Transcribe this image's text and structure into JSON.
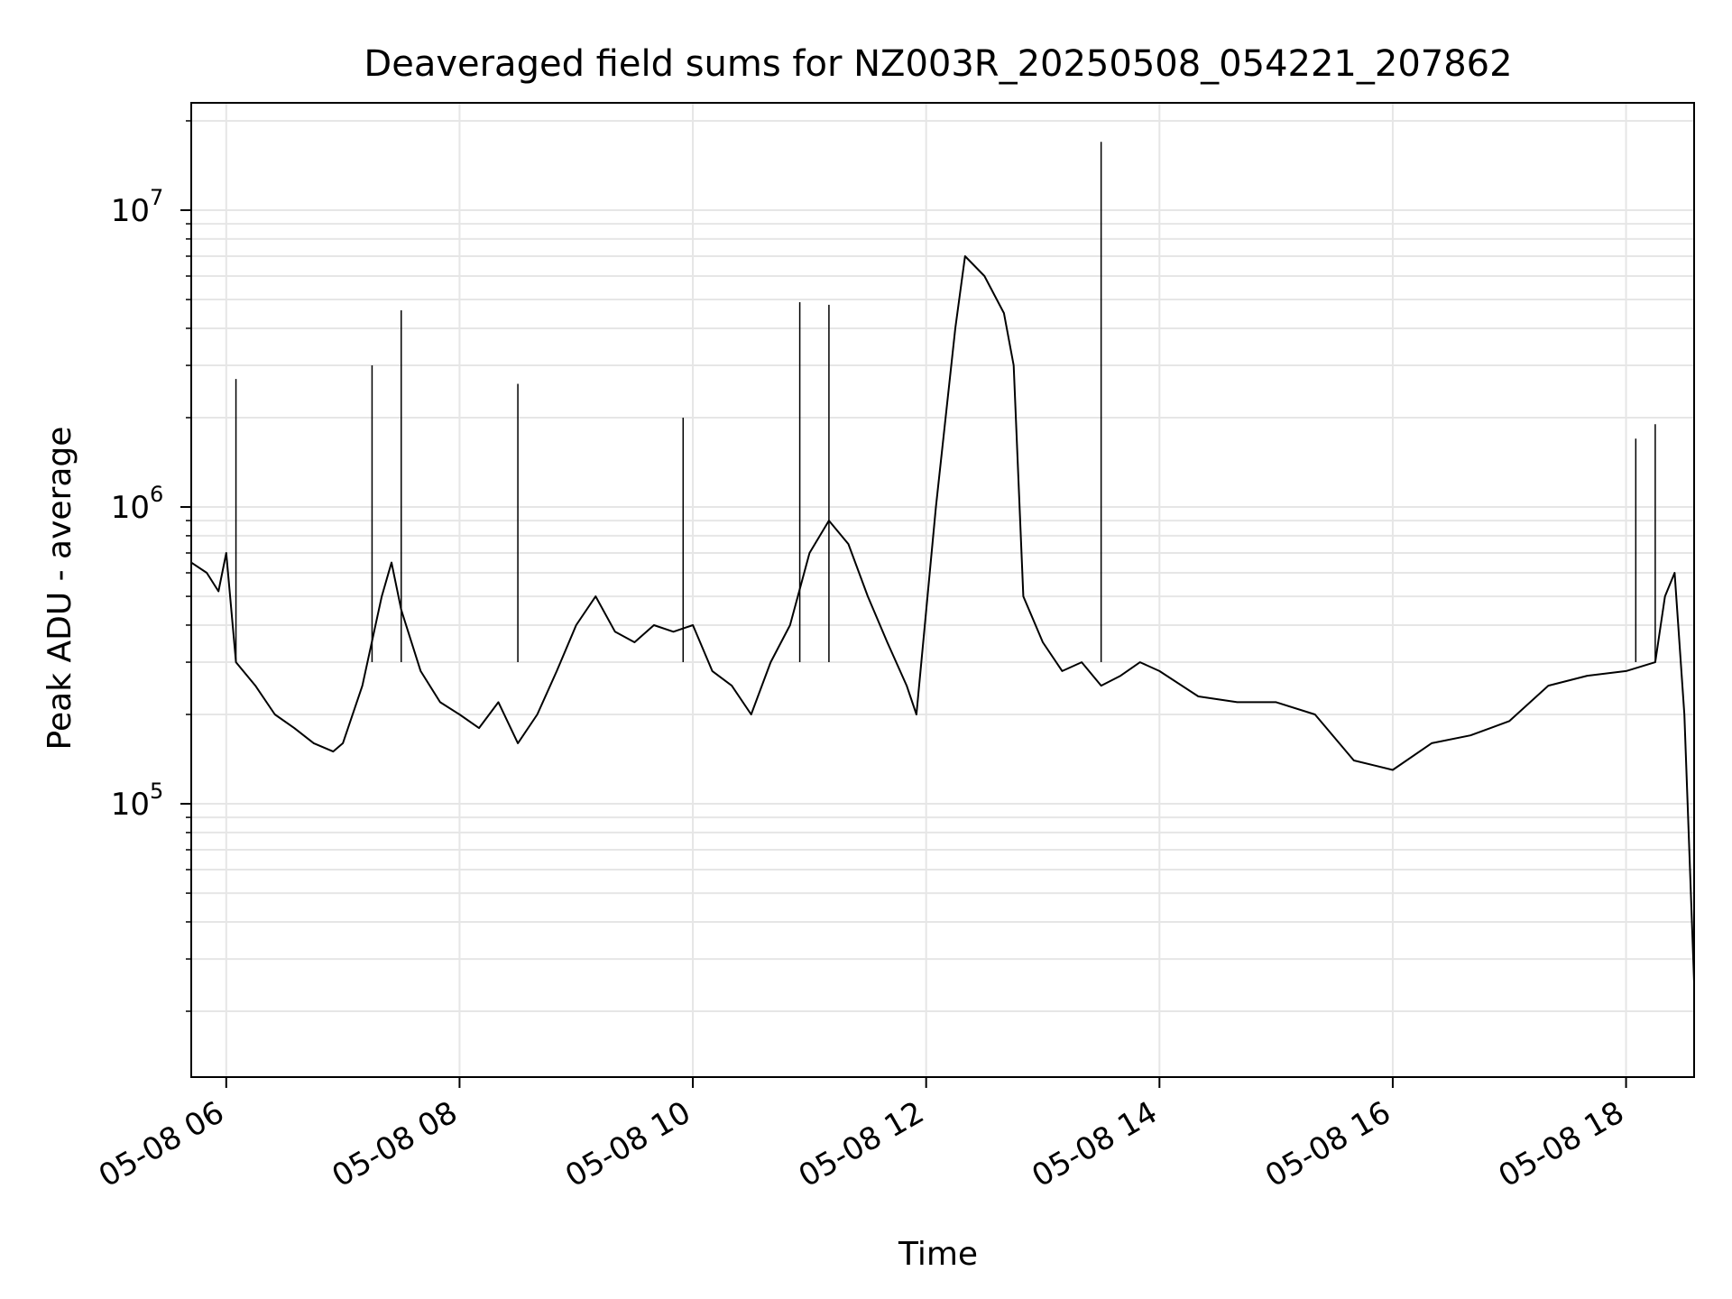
{
  "chart_data": {
    "type": "line",
    "title": "Deaveraged field sums for NZ003R_20250508_054221_207862",
    "xlabel": "Time",
    "ylabel": "Peak ADU - average",
    "yscale": "log",
    "grid": true,
    "line_color": "#000000",
    "grid_color": "#e6e6e6",
    "x_ticks": [
      "05-08 06",
      "05-08 08",
      "05-08 10",
      "05-08 12",
      "05-08 14",
      "05-08 16",
      "05-08 18"
    ],
    "x_tick_values": [
      "2025-05-08 06:00",
      "2025-05-08 08:00",
      "2025-05-08 10:00",
      "2025-05-08 12:00",
      "2025-05-08 14:00",
      "2025-05-08 16:00",
      "2025-05-08 18:00"
    ],
    "xlim": [
      "2025-05-08 05:42",
      "2025-05-08 18:35"
    ],
    "ylim": [
      12000,
      23000000
    ],
    "y_ticks": [
      {
        "base": "10",
        "exp": "5",
        "value": 100000
      },
      {
        "base": "10",
        "exp": "6",
        "value": 1000000
      },
      {
        "base": "10",
        "exp": "7",
        "value": 10000000
      }
    ],
    "series": [
      {
        "x": [
          "2025-05-08 05:42",
          "2025-05-08 05:50",
          "2025-05-08 05:56",
          "2025-05-08 06:00",
          "2025-05-08 06:05",
          "2025-05-08 06:15",
          "2025-05-08 06:25",
          "2025-05-08 06:35",
          "2025-05-08 06:45",
          "2025-05-08 06:55",
          "2025-05-08 07:00",
          "2025-05-08 07:10",
          "2025-05-08 07:20",
          "2025-05-08 07:25",
          "2025-05-08 07:30",
          "2025-05-08 07:40",
          "2025-05-08 07:50",
          "2025-05-08 08:00",
          "2025-05-08 08:10",
          "2025-05-08 08:20",
          "2025-05-08 08:30",
          "2025-05-08 08:40",
          "2025-05-08 08:50",
          "2025-05-08 09:00",
          "2025-05-08 09:10",
          "2025-05-08 09:20",
          "2025-05-08 09:30",
          "2025-05-08 09:40",
          "2025-05-08 09:50",
          "2025-05-08 10:00",
          "2025-05-08 10:10",
          "2025-05-08 10:20",
          "2025-05-08 10:30",
          "2025-05-08 10:40",
          "2025-05-08 10:50",
          "2025-05-08 11:00",
          "2025-05-08 11:10",
          "2025-05-08 11:20",
          "2025-05-08 11:30",
          "2025-05-08 11:40",
          "2025-05-08 11:50",
          "2025-05-08 11:55",
          "2025-05-08 12:05",
          "2025-05-08 12:15",
          "2025-05-08 12:20",
          "2025-05-08 12:30",
          "2025-05-08 12:40",
          "2025-05-08 12:45",
          "2025-05-08 12:50",
          "2025-05-08 13:00",
          "2025-05-08 13:10",
          "2025-05-08 13:20",
          "2025-05-08 13:30",
          "2025-05-08 13:40",
          "2025-05-08 13:50",
          "2025-05-08 14:00",
          "2025-05-08 14:20",
          "2025-05-08 14:40",
          "2025-05-08 15:00",
          "2025-05-08 15:20",
          "2025-05-08 15:40",
          "2025-05-08 16:00",
          "2025-05-08 16:20",
          "2025-05-08 16:40",
          "2025-05-08 17:00",
          "2025-05-08 17:20",
          "2025-05-08 17:40",
          "2025-05-08 18:00",
          "2025-05-08 18:15",
          "2025-05-08 18:20",
          "2025-05-08 18:25",
          "2025-05-08 18:30",
          "2025-05-08 18:35"
        ],
        "y": [
          650000,
          600000,
          520000,
          700000,
          300000,
          250000,
          200000,
          180000,
          160000,
          150000,
          160000,
          250000,
          500000,
          650000,
          450000,
          280000,
          220000,
          200000,
          180000,
          220000,
          160000,
          200000,
          280000,
          400000,
          500000,
          380000,
          350000,
          400000,
          380000,
          400000,
          280000,
          250000,
          200000,
          300000,
          400000,
          700000,
          900000,
          750000,
          500000,
          350000,
          250000,
          200000,
          1000000,
          4000000,
          7000000,
          6000000,
          4500000,
          3000000,
          500000,
          350000,
          280000,
          300000,
          250000,
          270000,
          300000,
          280000,
          230000,
          220000,
          220000,
          200000,
          140000,
          130000,
          160000,
          170000,
          190000,
          250000,
          270000,
          280000,
          300000,
          500000,
          600000,
          200000,
          25000
        ]
      }
    ],
    "spikes": [
      {
        "x": "2025-05-08 13:30",
        "y": 17000000
      },
      {
        "x": "2025-05-08 07:30",
        "y": 4600000
      },
      {
        "x": "2025-05-08 10:55",
        "y": 4900000
      },
      {
        "x": "2025-05-08 11:10",
        "y": 4800000
      },
      {
        "x": "2025-05-08 07:15",
        "y": 3000000
      },
      {
        "x": "2025-05-08 06:05",
        "y": 2700000
      },
      {
        "x": "2025-05-08 08:30",
        "y": 2600000
      },
      {
        "x": "2025-05-08 09:55",
        "y": 2000000
      },
      {
        "x": "2025-05-08 18:15",
        "y": 1900000
      },
      {
        "x": "2025-05-08 18:05",
        "y": 1700000
      }
    ]
  }
}
